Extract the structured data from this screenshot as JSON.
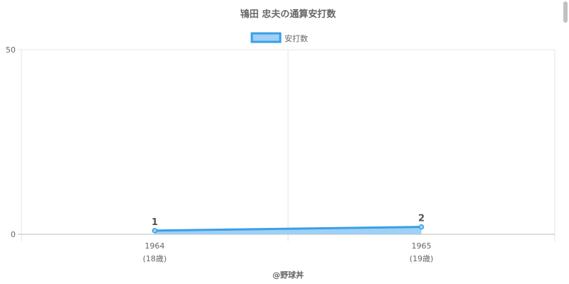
{
  "chart_data": {
    "type": "line",
    "title": "鴇田 忠夫の通算安打数",
    "categories": [
      "1964",
      "1965"
    ],
    "category_sublabels": [
      "(18歳)",
      "(19歳)"
    ],
    "series": [
      {
        "name": "安打数",
        "values": [
          1,
          2
        ],
        "data_labels": [
          "1",
          "2"
        ]
      }
    ],
    "ylim": [
      0,
      50
    ],
    "yticks": [
      "0",
      "50"
    ],
    "grid": true,
    "legend_placement": "top",
    "fill": true,
    "colors": {
      "line": "#3a9fe6",
      "fill": "#9fd0f5",
      "grid": "#e5e5e5",
      "text": "#666666"
    }
  },
  "footer": {
    "credit": "@野球丼"
  }
}
